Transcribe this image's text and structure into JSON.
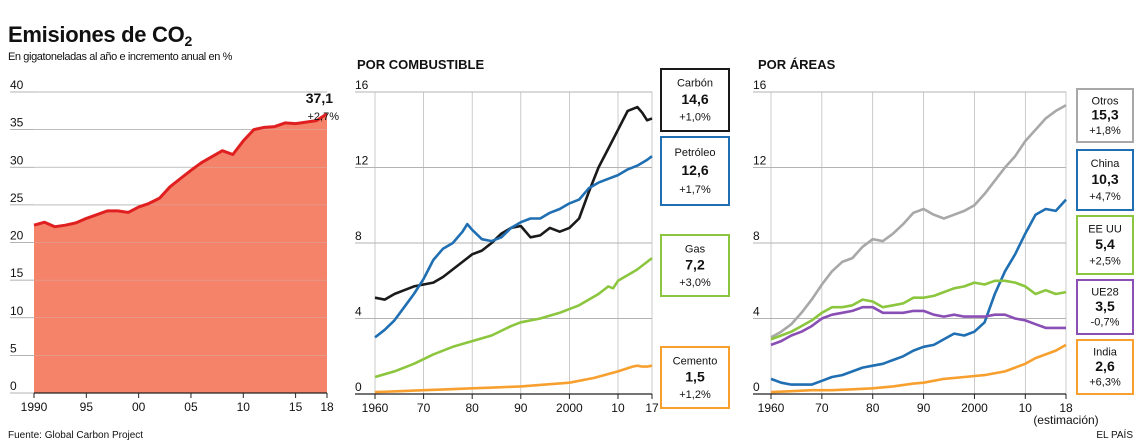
{
  "header": {
    "title": "Emisiones de CO",
    "title_sub": "2",
    "subtitle": "En gigatoneladas al año e incremento anual en %",
    "source": "Fuente: Global Carbon Project",
    "brand": "EL PAÍS"
  },
  "chart_data": [
    {
      "id": "total",
      "type": "area",
      "title": "",
      "color": "#f4836a",
      "line_color": "#e02020",
      "ylim": [
        0,
        40
      ],
      "yticks": [
        0,
        5,
        10,
        15,
        20,
        25,
        30,
        35,
        40
      ],
      "xlim": [
        1990,
        2018
      ],
      "xticks": [
        {
          "v": 1990,
          "label": "1990"
        },
        {
          "v": 1995,
          "label": "95"
        },
        {
          "v": 2000,
          "label": "00"
        },
        {
          "v": 2005,
          "label": "05"
        },
        {
          "v": 2010,
          "label": "10"
        },
        {
          "v": 2015,
          "label": "15"
        },
        {
          "v": 2018,
          "label": "18"
        }
      ],
      "annotation": {
        "value": "37,1",
        "change": "+2,7%"
      },
      "series": [
        {
          "x": [
            1990,
            1991,
            1992,
            1993,
            1994,
            1995,
            1996,
            1997,
            1998,
            1999,
            2000,
            2001,
            2002,
            2003,
            2004,
            2005,
            2006,
            2007,
            2008,
            2009,
            2010,
            2011,
            2012,
            2013,
            2014,
            2015,
            2016,
            2017,
            2018
          ],
          "values": [
            22.3,
            22.7,
            22.1,
            22.3,
            22.6,
            23.2,
            23.7,
            24.2,
            24.2,
            24.0,
            24.7,
            25.2,
            25.9,
            27.4,
            28.5,
            29.6,
            30.6,
            31.4,
            32.2,
            31.7,
            33.5,
            35.0,
            35.3,
            35.4,
            35.9,
            35.8,
            36.0,
            36.2,
            37.1
          ]
        }
      ]
    },
    {
      "id": "fuel",
      "type": "line",
      "title": "POR COMBUSTIBLE",
      "ylim": [
        0,
        16
      ],
      "yticks": [
        0,
        4,
        8,
        12,
        16
      ],
      "xlim": [
        1960,
        2017
      ],
      "xticks": [
        {
          "v": 1960,
          "label": "1960"
        },
        {
          "v": 1970,
          "label": "70"
        },
        {
          "v": 1980,
          "label": "80"
        },
        {
          "v": 1990,
          "label": "90"
        },
        {
          "v": 2000,
          "label": "2000"
        },
        {
          "v": 2010,
          "label": "10"
        },
        {
          "v": 2017,
          "label": "17"
        }
      ],
      "series": [
        {
          "name": "Carbón",
          "value": "14,6",
          "change": "+1,0%",
          "color": "#1a1a1a",
          "x": [
            1960,
            1962,
            1964,
            1966,
            1968,
            1970,
            1972,
            1974,
            1976,
            1978,
            1980,
            1982,
            1984,
            1986,
            1988,
            1990,
            1992,
            1994,
            1996,
            1998,
            2000,
            2002,
            2004,
            2006,
            2008,
            2010,
            2012,
            2014,
            2015,
            2016,
            2017
          ],
          "values": [
            5.1,
            5.0,
            5.3,
            5.5,
            5.7,
            5.8,
            5.9,
            6.2,
            6.6,
            7.0,
            7.4,
            7.6,
            8.0,
            8.5,
            8.8,
            8.9,
            8.3,
            8.4,
            8.8,
            8.6,
            8.8,
            9.3,
            10.7,
            12.0,
            13.0,
            14.0,
            15.0,
            15.2,
            14.9,
            14.5,
            14.6
          ]
        },
        {
          "name": "Petróleo",
          "value": "12,6",
          "change": "+1,7%",
          "color": "#1f6fb2",
          "x": [
            1960,
            1962,
            1964,
            1966,
            1968,
            1970,
            1972,
            1974,
            1976,
            1978,
            1979,
            1980,
            1982,
            1984,
            1986,
            1988,
            1990,
            1992,
            1994,
            1996,
            1998,
            2000,
            2002,
            2004,
            2006,
            2008,
            2010,
            2012,
            2014,
            2016,
            2017
          ],
          "values": [
            3.0,
            3.4,
            3.9,
            4.6,
            5.3,
            6.1,
            7.1,
            7.7,
            8.0,
            8.6,
            9.0,
            8.7,
            8.2,
            8.1,
            8.3,
            8.8,
            9.1,
            9.3,
            9.3,
            9.6,
            9.8,
            10.1,
            10.3,
            10.9,
            11.2,
            11.4,
            11.6,
            11.9,
            12.1,
            12.4,
            12.6
          ]
        },
        {
          "name": "Gas",
          "value": "7,2",
          "change": "+3,0%",
          "color": "#8cc63f",
          "x": [
            1960,
            1964,
            1968,
            1972,
            1976,
            1980,
            1984,
            1988,
            1990,
            1994,
            1998,
            2002,
            2006,
            2008,
            2009,
            2010,
            2012,
            2014,
            2016,
            2017
          ],
          "values": [
            0.9,
            1.2,
            1.6,
            2.1,
            2.5,
            2.8,
            3.1,
            3.6,
            3.8,
            4.0,
            4.3,
            4.7,
            5.3,
            5.7,
            5.6,
            6.0,
            6.3,
            6.6,
            7.0,
            7.2
          ]
        },
        {
          "name": "Cemento",
          "value": "1,5",
          "change": "+1,2%",
          "color": "#f7a030",
          "x": [
            1960,
            1965,
            1970,
            1975,
            1980,
            1985,
            1990,
            1995,
            2000,
            2005,
            2010,
            2013,
            2014,
            2015,
            2016,
            2017
          ],
          "values": [
            0.1,
            0.15,
            0.2,
            0.25,
            0.3,
            0.35,
            0.4,
            0.5,
            0.6,
            0.85,
            1.2,
            1.45,
            1.5,
            1.45,
            1.45,
            1.5
          ]
        }
      ]
    },
    {
      "id": "region",
      "type": "line",
      "title": "POR ÁREAS",
      "ylim": [
        0,
        16
      ],
      "yticks": [
        0,
        4,
        8,
        12,
        16
      ],
      "xlim": [
        1960,
        2018
      ],
      "xticks": [
        {
          "v": 1960,
          "label": "1960"
        },
        {
          "v": 1970,
          "label": "70"
        },
        {
          "v": 1980,
          "label": "80"
        },
        {
          "v": 1990,
          "label": "90"
        },
        {
          "v": 2000,
          "label": "2000"
        },
        {
          "v": 2010,
          "label": "10"
        },
        {
          "v": 2018,
          "label": "18"
        }
      ],
      "x_note": "(estimación)",
      "series": [
        {
          "name": "Otros",
          "value": "15,3",
          "change": "+1,8%",
          "color": "#a8a8a8",
          "x": [
            1960,
            1962,
            1964,
            1966,
            1968,
            1970,
            1972,
            1974,
            1976,
            1978,
            1980,
            1982,
            1984,
            1986,
            1988,
            1990,
            1992,
            1994,
            1996,
            1998,
            2000,
            2002,
            2004,
            2006,
            2008,
            2010,
            2012,
            2014,
            2016,
            2018
          ],
          "values": [
            3.0,
            3.3,
            3.7,
            4.3,
            5.0,
            5.8,
            6.5,
            7.0,
            7.2,
            7.8,
            8.2,
            8.1,
            8.5,
            9.0,
            9.6,
            9.8,
            9.5,
            9.3,
            9.5,
            9.7,
            10.0,
            10.6,
            11.3,
            12.0,
            12.6,
            13.4,
            14.0,
            14.6,
            15.0,
            15.3
          ]
        },
        {
          "name": "China",
          "value": "10,3",
          "change": "+4,7%",
          "color": "#1f6fb2",
          "x": [
            1960,
            1962,
            1964,
            1966,
            1968,
            1970,
            1972,
            1974,
            1976,
            1978,
            1980,
            1982,
            1984,
            1986,
            1988,
            1990,
            1992,
            1994,
            1996,
            1998,
            2000,
            2002,
            2004,
            2006,
            2008,
            2010,
            2012,
            2014,
            2016,
            2018
          ],
          "values": [
            0.8,
            0.6,
            0.5,
            0.5,
            0.5,
            0.7,
            0.9,
            1.0,
            1.2,
            1.4,
            1.5,
            1.6,
            1.8,
            2.0,
            2.3,
            2.5,
            2.6,
            2.9,
            3.2,
            3.1,
            3.3,
            3.8,
            5.3,
            6.5,
            7.4,
            8.5,
            9.5,
            9.8,
            9.7,
            10.3
          ]
        },
        {
          "name": "EE UU",
          "value": "5,4",
          "change": "+2,5%",
          "color": "#8cc63f",
          "x": [
            1960,
            1962,
            1964,
            1966,
            1968,
            1970,
            1972,
            1974,
            1976,
            1978,
            1980,
            1982,
            1984,
            1986,
            1988,
            1990,
            1992,
            1994,
            1996,
            1998,
            2000,
            2002,
            2004,
            2006,
            2008,
            2010,
            2012,
            2014,
            2016,
            2018
          ],
          "values": [
            2.9,
            3.1,
            3.3,
            3.6,
            3.9,
            4.3,
            4.6,
            4.6,
            4.7,
            5.0,
            4.9,
            4.6,
            4.7,
            4.8,
            5.1,
            5.1,
            5.2,
            5.4,
            5.6,
            5.7,
            5.9,
            5.8,
            6.0,
            6.0,
            5.9,
            5.7,
            5.3,
            5.5,
            5.3,
            5.4
          ]
        },
        {
          "name": "UE28",
          "value": "3,5",
          "change": "-0,7%",
          "color": "#8a4fb5",
          "x": [
            1960,
            1962,
            1964,
            1966,
            1968,
            1970,
            1972,
            1974,
            1976,
            1978,
            1980,
            1982,
            1984,
            1986,
            1988,
            1990,
            1992,
            1994,
            1996,
            1998,
            2000,
            2002,
            2004,
            2006,
            2008,
            2010,
            2012,
            2014,
            2016,
            2018
          ],
          "values": [
            2.6,
            2.8,
            3.1,
            3.3,
            3.6,
            4.0,
            4.2,
            4.3,
            4.4,
            4.6,
            4.6,
            4.3,
            4.3,
            4.3,
            4.4,
            4.4,
            4.2,
            4.1,
            4.2,
            4.1,
            4.1,
            4.1,
            4.2,
            4.2,
            4.0,
            3.9,
            3.7,
            3.5,
            3.5,
            3.5
          ]
        },
        {
          "name": "India",
          "value": "2,6",
          "change": "+6,3%",
          "color": "#f7a030",
          "x": [
            1960,
            1964,
            1968,
            1972,
            1976,
            1980,
            1984,
            1988,
            1990,
            1994,
            1998,
            2002,
            2006,
            2008,
            2010,
            2012,
            2014,
            2016,
            2018
          ],
          "values": [
            0.1,
            0.15,
            0.2,
            0.2,
            0.25,
            0.3,
            0.4,
            0.55,
            0.6,
            0.8,
            0.9,
            1.0,
            1.2,
            1.4,
            1.6,
            1.9,
            2.1,
            2.3,
            2.6
          ]
        }
      ]
    }
  ]
}
